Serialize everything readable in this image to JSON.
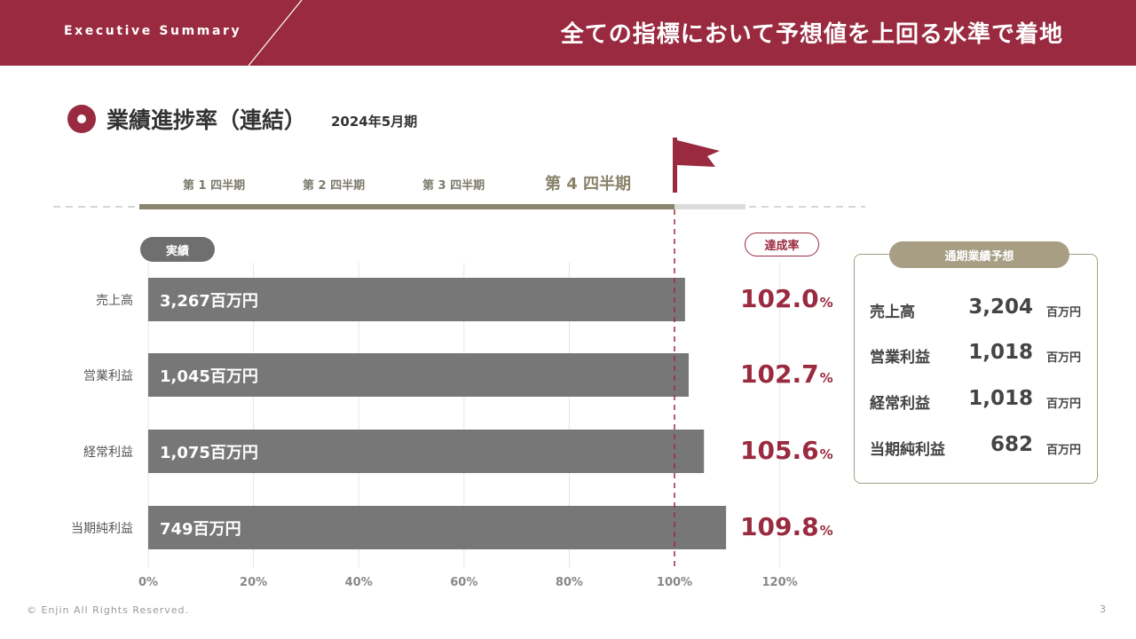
{
  "header": {
    "tag": "Executive Summary",
    "title": "全ての指標において予想値を上回る水準で着地"
  },
  "section": {
    "title": "業績進捗率（連結）",
    "subtitle": "2024年5月期"
  },
  "timeline": {
    "quarters": [
      "第 1 四半期",
      "第 2 四半期",
      "第 3 四半期",
      "第 4 四半期"
    ],
    "active_index": 3,
    "progress_percent": 100,
    "track_max_percent": 113.5
  },
  "labels": {
    "actual": "実績",
    "rate": "達成率",
    "forecast_title": "通期業績予想"
  },
  "chart_data": {
    "type": "bar",
    "orientation": "horizontal",
    "categories": [
      "売上高",
      "営業利益",
      "経常利益",
      "当期純利益"
    ],
    "values": [
      102.0,
      102.7,
      105.6,
      109.8
    ],
    "bar_labels": [
      "3,267百万円",
      "1,045百万円",
      "1,075百万円",
      "749百万円"
    ],
    "rate_values": [
      "102.0",
      "102.7",
      "105.6",
      "109.8"
    ],
    "rate_unit": "%",
    "xlim": [
      0,
      120
    ],
    "xticks": [
      "0%",
      "20%",
      "40%",
      "60%",
      "80%",
      "100%",
      "120%"
    ],
    "reference_line": 100,
    "grid": true,
    "title": "業績進捗率（連結）"
  },
  "forecast": {
    "items": [
      {
        "label": "売上高",
        "value": "3,204",
        "unit": "百万円"
      },
      {
        "label": "営業利益",
        "value": "1,018",
        "unit": "百万円"
      },
      {
        "label": "経常利益",
        "value": "1,018",
        "unit": "百万円"
      },
      {
        "label": "当期純利益",
        "value": "682",
        "unit": "百万円"
      }
    ]
  },
  "footer": {
    "copyright": "© Enjin All Rights Reserved.",
    "page": "3"
  },
  "colors": {
    "brand": "#9a2a3f",
    "bar": "#777777",
    "timeline": "#8a836d",
    "accent_gold": "#a79e84"
  }
}
